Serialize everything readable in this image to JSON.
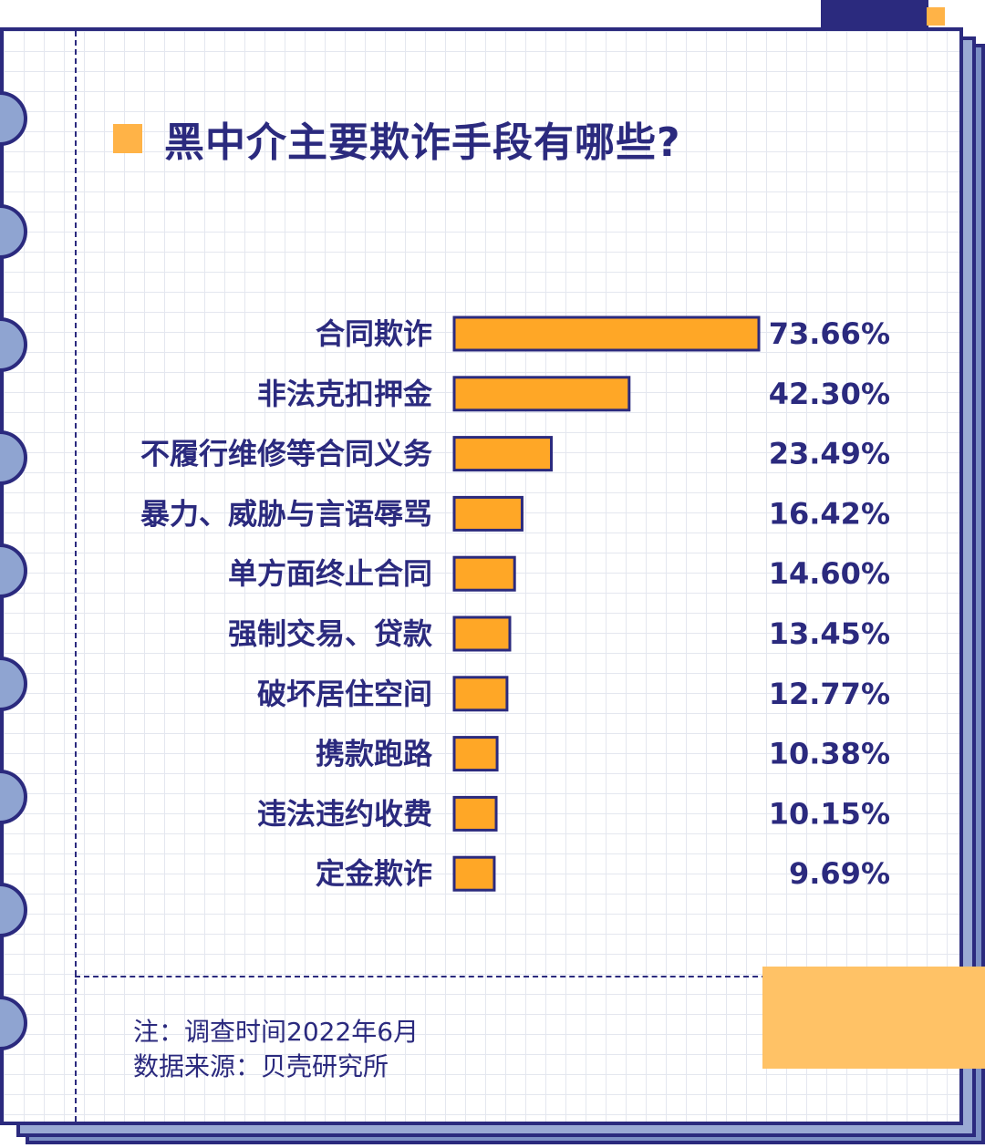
{
  "chart_data": {
    "type": "bar",
    "orientation": "horizontal",
    "title": "黑中介主要欺诈手段有哪些?",
    "categories": [
      "合同欺诈",
      "非法克扣押金",
      "不履行维修等合同义务",
      "暴力、威胁与言语辱骂",
      "单方面终止合同",
      "强制交易、贷款",
      "破坏居住空间",
      "携款跑路",
      "违法违约收费",
      "定金欺诈"
    ],
    "values": [
      73.66,
      42.3,
      23.49,
      16.42,
      14.6,
      13.45,
      12.77,
      10.38,
      10.15,
      9.69
    ],
    "value_labels": [
      "73.66%",
      "42.30%",
      "23.49%",
      "16.42%",
      "14.60%",
      "13.45%",
      "12.77%",
      "10.38%",
      "10.15%",
      "9.69%"
    ],
    "xlim": [
      0,
      73.66
    ],
    "bar_color": "#ffa726",
    "outline_color": "#2b2a7e",
    "grid": false,
    "legend": "none"
  },
  "notes": {
    "survey_time": "注：调查时间2022年6月",
    "source": "数据来源：贝壳研究所"
  },
  "colors": {
    "navy": "#2b2a7e",
    "orange": "#ffa726",
    "light_orange": "#ffc266",
    "ring_blue": "#8fa4d1"
  }
}
